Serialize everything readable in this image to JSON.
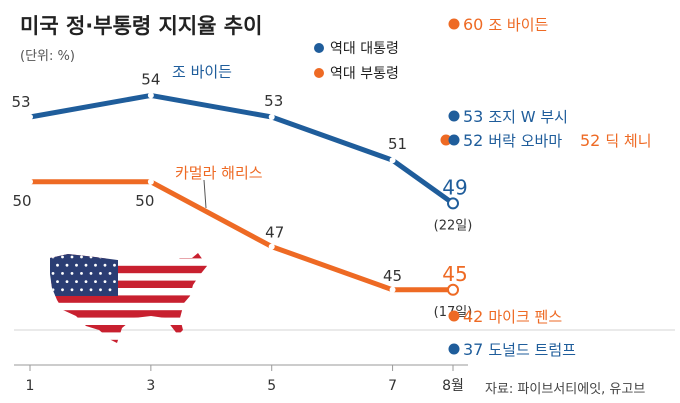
{
  "colors": {
    "president": "#1f5d9b",
    "vice_president": "#ee6a24",
    "grid": "#d5d5d5",
    "axis": "#9a9a9a",
    "flag_red": "#c8202f",
    "flag_blue": "#2b3d73",
    "flag_white": "#ffffff"
  },
  "chart_data": {
    "type": "line",
    "title": "미국 정·부통령 지지율 추이",
    "unit": "(단위: %)",
    "x": [
      1,
      3,
      5,
      7,
      8
    ],
    "x_tick_labels": [
      "1",
      "3",
      "5",
      "7",
      "8월"
    ],
    "ylim": [
      34,
      63
    ],
    "grid": "horizontal",
    "legend": {
      "placement": "top-center",
      "entries": [
        "역대 대통령",
        "역대 부통령"
      ]
    },
    "series": [
      {
        "key": "president",
        "name": "조 바이든",
        "values": [
          53,
          54,
          53,
          51,
          49
        ],
        "labels": [
          "53",
          "54",
          "53",
          "51",
          "49"
        ],
        "end_note": "(22일)"
      },
      {
        "key": "vice_president",
        "name": "카멀라 해리스",
        "values": [
          50,
          50,
          47,
          45,
          45
        ],
        "labels": [
          "50",
          "50",
          "47",
          "45",
          "45"
        ],
        "end_note": "(17일)"
      }
    ],
    "references": [
      {
        "group": "vice_president",
        "value": 60,
        "value_label": "60",
        "name": "조 바이든"
      },
      {
        "group": "president",
        "value": 53,
        "value_label": "53",
        "name": "조지 W 부시"
      },
      {
        "group": "president",
        "value": 52,
        "value_label": "52",
        "name": "버락 오바마"
      },
      {
        "group": "vice_president",
        "value": 52,
        "value_label": "52",
        "name": "딕 체니"
      },
      {
        "group": "vice_president",
        "value": 42,
        "value_label": "42",
        "name": "마이크 펜스"
      },
      {
        "group": "president",
        "value": 37,
        "value_label": "37",
        "name": "도널드 트럼프"
      }
    ],
    "source": "자료: 파이브서티에잇, 유고브"
  }
}
